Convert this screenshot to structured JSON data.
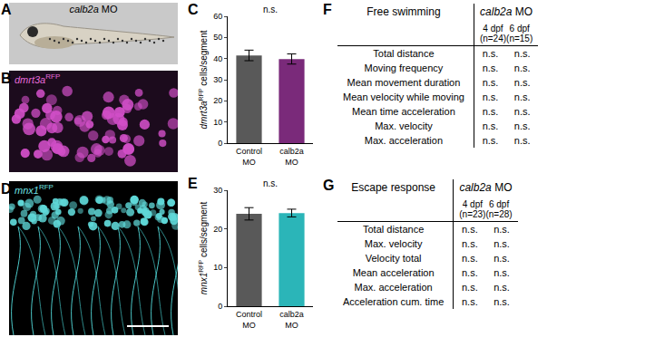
{
  "images": [
    {
      "letter": "A",
      "label": "calb2a MO"
    },
    {
      "letter": "B",
      "label": "dmrt3a",
      "superscript": "RFP"
    },
    {
      "letter": "D",
      "label": "mnx1",
      "superscript": "RFP"
    }
  ],
  "chart_data": [
    {
      "letter": "C",
      "type": "bar",
      "categories": [
        "Control MO",
        "calb2a MO"
      ],
      "values": [
        41.5,
        39.8
      ],
      "errors": [
        2.5,
        2.4
      ],
      "colors": [
        "#595959",
        "#7a2a7a"
      ],
      "ylabel": {
        "italic": "dmrt3a",
        "superscript": "RFP",
        "text": "cells/segment"
      },
      "ylim": [
        0,
        60
      ],
      "yticks": [
        0,
        10,
        20,
        30,
        40,
        50,
        60
      ],
      "annotation": "n.s.",
      "grid": false
    },
    {
      "letter": "E",
      "type": "bar",
      "categories": [
        "Control MO",
        "calb2a MO"
      ],
      "values": [
        23.9,
        24.1
      ],
      "errors": [
        1.6,
        1.0
      ],
      "colors": [
        "#595959",
        "#2bb5b8"
      ],
      "ylabel": {
        "italic": "mnx1",
        "superscript": "RFP",
        "text": "cells/segment"
      },
      "ylim": [
        0,
        30
      ],
      "yticks": [
        0,
        10,
        20,
        30
      ],
      "annotation": "n.s.",
      "grid": false
    }
  ],
  "tables": [
    {
      "letter": "F",
      "title": "Free swimming",
      "group": "calb2a MO",
      "columns": [
        {
          "label": "4 dpf",
          "n": "(n=24)"
        },
        {
          "label": "6 dpf",
          "n": "(n=15)"
        }
      ],
      "rows": [
        [
          "Total distance",
          "n.s.",
          "n.s."
        ],
        [
          "Moving frequency",
          "n.s.",
          "n.s."
        ],
        [
          "Mean movement duration",
          "n.s.",
          "n.s."
        ],
        [
          "Mean velocity while moving",
          "n.s.",
          "n.s."
        ],
        [
          "Mean time acceleration",
          "n.s.",
          "n.s."
        ],
        [
          "Max. velocity",
          "n.s.",
          "n.s."
        ],
        [
          "Max. acceleration",
          "n.s.",
          "n.s."
        ]
      ]
    },
    {
      "letter": "G",
      "title": "Escape response",
      "group": "calb2a MO",
      "columns": [
        {
          "label": "4 dpf",
          "n": "(n=23)"
        },
        {
          "label": "6 dpf",
          "n": "(n=28)"
        }
      ],
      "rows": [
        [
          "Total distance",
          "n.s.",
          "n.s."
        ],
        [
          "Max. velocity",
          "n.s.",
          "n.s."
        ],
        [
          "Velocity total",
          "n.s.",
          "n.s."
        ],
        [
          "Mean acceleration",
          "n.s.",
          "n.s."
        ],
        [
          "Max. acceleration",
          "n.s.",
          "n.s."
        ],
        [
          "Acceleration cum. time",
          "n.s.",
          "n.s."
        ]
      ]
    }
  ]
}
